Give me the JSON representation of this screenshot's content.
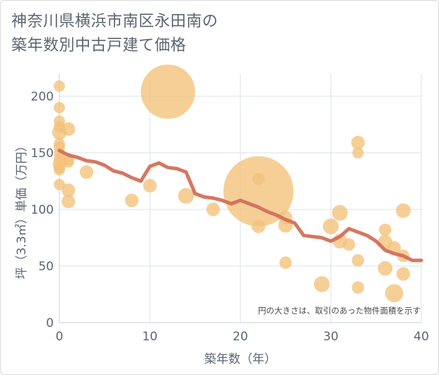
{
  "chart_data": {
    "type": "scatter",
    "title": [
      "神奈川県横浜市南区永田南の",
      "築年数別中古戸建て価格"
    ],
    "xlabel": "築年数（年）",
    "ylabel": "坪（3.3㎡）単価（万円）",
    "note": "円の大きさは、取引のあった物件面積を示す",
    "xlim": [
      0,
      40
    ],
    "ylim": [
      0,
      220
    ],
    "xticks": [
      0,
      10,
      20,
      30,
      40
    ],
    "yticks": [
      0,
      50,
      100,
      150,
      200
    ],
    "grid": true,
    "colors": {
      "points": "#f4c27a",
      "line": "#d2705a",
      "grid": "#dbe2ea"
    },
    "points": [
      {
        "x": 0,
        "y": 209,
        "s": 1
      },
      {
        "x": 0,
        "y": 190,
        "s": 1
      },
      {
        "x": 0,
        "y": 178,
        "s": 1
      },
      {
        "x": 0,
        "y": 173,
        "s": 1
      },
      {
        "x": 0,
        "y": 168,
        "s": 1.3
      },
      {
        "x": 0,
        "y": 158,
        "s": 1
      },
      {
        "x": 0,
        "y": 155,
        "s": 1
      },
      {
        "x": 0,
        "y": 150,
        "s": 1
      },
      {
        "x": 0,
        "y": 145,
        "s": 1
      },
      {
        "x": 0,
        "y": 140,
        "s": 1.2
      },
      {
        "x": 0,
        "y": 137,
        "s": 1
      },
      {
        "x": 0,
        "y": 135,
        "s": 1
      },
      {
        "x": 0,
        "y": 122,
        "s": 1
      },
      {
        "x": 1,
        "y": 171,
        "s": 1.2
      },
      {
        "x": 1,
        "y": 144,
        "s": 1
      },
      {
        "x": 1,
        "y": 142,
        "s": 1
      },
      {
        "x": 1,
        "y": 117,
        "s": 1.2
      },
      {
        "x": 1,
        "y": 107,
        "s": 1.2
      },
      {
        "x": 3,
        "y": 133,
        "s": 1.2
      },
      {
        "x": 8,
        "y": 108,
        "s": 1.2
      },
      {
        "x": 10,
        "y": 121,
        "s": 1.2
      },
      {
        "x": 12,
        "y": 204,
        "s": 4.8
      },
      {
        "x": 14,
        "y": 112,
        "s": 1.4
      },
      {
        "x": 17,
        "y": 100,
        "s": 1.2
      },
      {
        "x": 22,
        "y": 116,
        "s": 6.2
      },
      {
        "x": 22,
        "y": 127,
        "s": 1.1
      },
      {
        "x": 22,
        "y": 85,
        "s": 1.2
      },
      {
        "x": 25,
        "y": 93,
        "s": 1.2
      },
      {
        "x": 25,
        "y": 86,
        "s": 1.3
      },
      {
        "x": 25,
        "y": 53,
        "s": 1.1
      },
      {
        "x": 29,
        "y": 34,
        "s": 1.4
      },
      {
        "x": 30,
        "y": 85,
        "s": 1.4
      },
      {
        "x": 31,
        "y": 97,
        "s": 1.4
      },
      {
        "x": 31,
        "y": 72,
        "s": 1.3
      },
      {
        "x": 32,
        "y": 69,
        "s": 1.1
      },
      {
        "x": 33,
        "y": 159,
        "s": 1.2
      },
      {
        "x": 33,
        "y": 150,
        "s": 1
      },
      {
        "x": 33,
        "y": 55,
        "s": 1.1
      },
      {
        "x": 33,
        "y": 31,
        "s": 1.1
      },
      {
        "x": 36,
        "y": 82,
        "s": 1.1
      },
      {
        "x": 36,
        "y": 71,
        "s": 1.3
      },
      {
        "x": 36,
        "y": 48,
        "s": 1.3
      },
      {
        "x": 37,
        "y": 66,
        "s": 1.2
      },
      {
        "x": 37,
        "y": 26,
        "s": 1.6
      },
      {
        "x": 38,
        "y": 99,
        "s": 1.3
      },
      {
        "x": 38,
        "y": 59,
        "s": 1.1
      },
      {
        "x": 38,
        "y": 43,
        "s": 1.2
      }
    ],
    "trend": {
      "x": [
        0,
        1,
        2,
        3,
        4,
        5,
        6,
        7,
        8,
        9,
        10,
        11,
        12,
        13,
        14,
        15,
        16,
        17,
        18,
        19,
        20,
        21,
        22,
        23,
        24,
        25,
        26,
        27,
        28,
        29,
        30,
        31,
        32,
        33,
        34,
        35,
        36,
        37,
        38,
        39,
        40
      ],
      "y": [
        152,
        148,
        146,
        143,
        142,
        139,
        134,
        132,
        128,
        125,
        138,
        141,
        137,
        136,
        133,
        114,
        111,
        110,
        108,
        105,
        108,
        105,
        102,
        98,
        95,
        91,
        88,
        77,
        76,
        75,
        72,
        76,
        83,
        80,
        77,
        72,
        64,
        61,
        59,
        55,
        55
      ]
    }
  }
}
